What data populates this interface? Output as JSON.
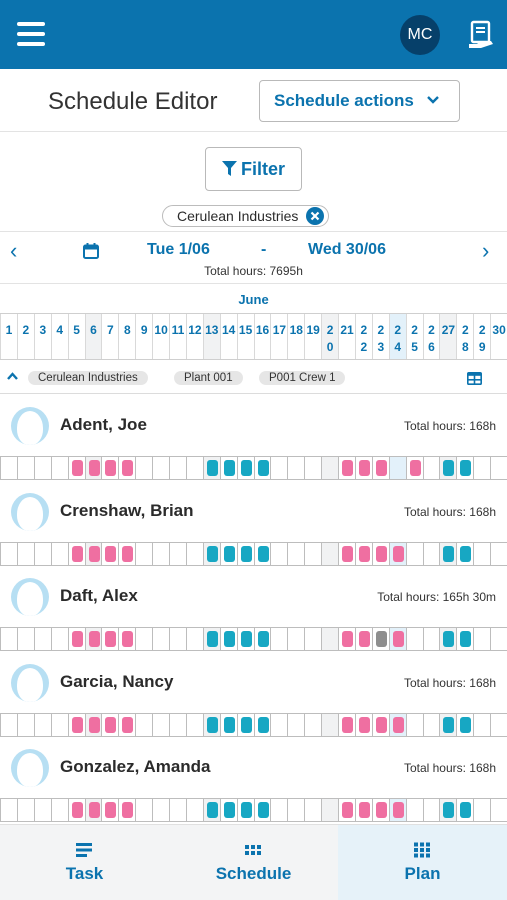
{
  "topbar": {
    "menu_icon": "hamburger-icon",
    "user_initials": "MC",
    "report_icon": "document-hand-icon",
    "bg_color": "#0b73ae"
  },
  "header": {
    "title": "Schedule Editor",
    "actions_label": "Schedule actions"
  },
  "filter": {
    "label": "Filter",
    "active_filter": "Cerulean Industries"
  },
  "date_range": {
    "start": "Tue 1/06",
    "separator": "-",
    "end": "Wed 30/06",
    "total_hours": "Total hours: 7695h"
  },
  "calendar": {
    "month": "June",
    "days": [
      "1",
      "2",
      "3",
      "4",
      "5",
      "6",
      "7",
      "8",
      "9",
      "10",
      "11",
      "12",
      "13",
      "14",
      "15",
      "16",
      "17",
      "18",
      "19",
      "2\n0",
      "21",
      "2\n2",
      "2\n3",
      "2\n4",
      "2\n5",
      "2\n6",
      "27",
      "2\n8",
      "2\n9",
      "30"
    ]
  },
  "breadcrumb": {
    "company": "Cerulean Industries",
    "plant": "Plant 001",
    "crew": "P001 Crew 1"
  },
  "employees": [
    {
      "name": "Adent, Joe",
      "total": "Total hours: 168h",
      "shifts": "----pppp----tttt----ppp-p-tt"
    },
    {
      "name": "Crenshaw, Brian",
      "total": "Total hours: 168h",
      "shifts": "----pppp----tttt----pppp--tt"
    },
    {
      "name": "Daft, Alex",
      "total": "Total hours: 165h 30m",
      "shifts": "----pppp----tttt----ppgp--tt"
    },
    {
      "name": "Garcia, Nancy",
      "total": "Total hours: 168h",
      "shifts": "----pppp----tttt----pppp--tt"
    },
    {
      "name": "Gonzalez, Amanda",
      "total": "Total hours: 168h",
      "shifts": "----pppp----tttt----pppp--tt"
    }
  ],
  "colors": {
    "pink_shift": "#ef6fa1",
    "teal_shift": "#17a7c3",
    "modified_shift": "#8e8e8e",
    "accent": "#0b73ae"
  },
  "tabs": [
    {
      "label": "Task",
      "icon": "task-list-icon"
    },
    {
      "label": "Schedule",
      "icon": "schedule-grid-icon"
    },
    {
      "label": "Plan",
      "icon": "plan-grid-icon",
      "active": true
    }
  ]
}
